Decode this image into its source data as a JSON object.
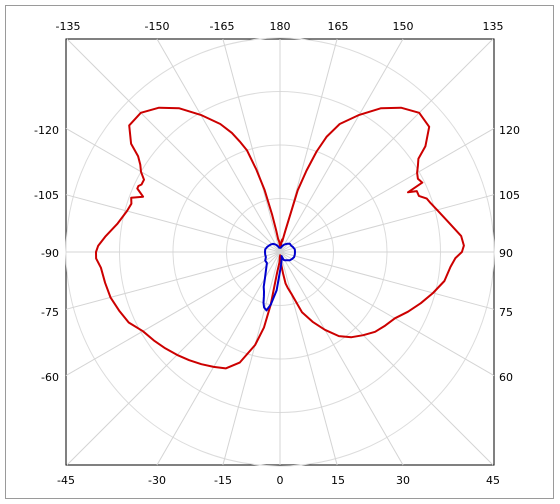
{
  "chart_data": {
    "type": "polar",
    "title": "",
    "angle_axis": {
      "top_ticks": [
        "-135",
        "-150",
        "-165",
        "180",
        "165",
        "150",
        "135"
      ],
      "left_ticks": [
        "-120",
        "-105",
        "-90",
        "-75",
        "-60"
      ],
      "right_ticks": [
        "120",
        "105",
        "90",
        "75",
        "60"
      ],
      "bottom_ticks": [
        "-45",
        "-30",
        "-15",
        "0",
        "15",
        "30",
        "45"
      ],
      "step_deg": 15
    },
    "radial_axis": {
      "rings": 4,
      "range": [
        0,
        1
      ]
    },
    "grid": true,
    "series": [
      {
        "color": "#cc0000",
        "angles": [
          180,
          175,
          172,
          170,
          168,
          166,
          164,
          162,
          160,
          158,
          155,
          150,
          145,
          140,
          135,
          130,
          126,
          124,
          122,
          120,
          118,
          116,
          115,
          114,
          112,
          110,
          108,
          105,
          100,
          95,
          92,
          90,
          88,
          85,
          80,
          75,
          70,
          65,
          60,
          55,
          50,
          45,
          40,
          35,
          30,
          25,
          20,
          15,
          12,
          10,
          8,
          6,
          5,
          4,
          3,
          2,
          1,
          0,
          -1,
          -2,
          -3,
          -5,
          -8,
          -10,
          -12,
          -15,
          -20,
          -25,
          -30,
          -35,
          -40,
          -45,
          -50,
          -55,
          -60,
          -65,
          -70,
          -75,
          -80,
          -85,
          -88,
          -90,
          -92,
          -95,
          -100,
          -105,
          -108,
          -110,
          -112,
          -114,
          -115,
          -116,
          -118,
          -120,
          -122,
          -124,
          -126,
          -130,
          -135,
          -140,
          -145,
          -150,
          -155,
          -158,
          -160,
          -162,
          -164,
          -166,
          -168,
          -170,
          -172,
          -175,
          -180
        ],
        "r": [
          0.03,
          0.02,
          0.05,
          0.06,
          0.05,
          0.1,
          0.3,
          0.4,
          0.5,
          0.58,
          0.66,
          0.74,
          0.82,
          0.88,
          0.92,
          0.91,
          0.84,
          0.78,
          0.76,
          0.74,
          0.73,
          0.74,
          0.66,
          0.7,
          0.7,
          0.73,
          0.74,
          0.76,
          0.8,
          0.85,
          0.86,
          0.85,
          0.82,
          0.8,
          0.78,
          0.74,
          0.7,
          0.66,
          0.62,
          0.6,
          0.58,
          0.55,
          0.52,
          0.48,
          0.42,
          0.36,
          0.3,
          0.2,
          0.17,
          0.15,
          0.1,
          0.06,
          0.03,
          0.04,
          0.02,
          0.015,
          0.03,
          0.02,
          0.02,
          0.03,
          0.05,
          0.06,
          0.1,
          0.25,
          0.36,
          0.45,
          0.55,
          0.6,
          0.62,
          0.64,
          0.66,
          0.68,
          0.7,
          0.72,
          0.74,
          0.78,
          0.8,
          0.82,
          0.83,
          0.84,
          0.86,
          0.86,
          0.85,
          0.82,
          0.77,
          0.74,
          0.73,
          0.74,
          0.69,
          0.73,
          0.73,
          0.72,
          0.72,
          0.75,
          0.77,
          0.8,
          0.86,
          0.92,
          0.92,
          0.88,
          0.82,
          0.74,
          0.66,
          0.6,
          0.55,
          0.5,
          0.4,
          0.3,
          0.18,
          0.1,
          0.06,
          0.05,
          0.03
        ]
      },
      {
        "color": "#0000cc",
        "angles": [
          180,
          170,
          160,
          150,
          140,
          130,
          120,
          110,
          100,
          90,
          80,
          70,
          60,
          50,
          40,
          30,
          25,
          20,
          15,
          10,
          5,
          0,
          -5,
          -10,
          -13,
          -16,
          -18,
          -20,
          -22,
          -25,
          -30,
          -40,
          -50,
          -60,
          -70,
          -80,
          -90,
          -100,
          -110,
          -120,
          -130,
          -140,
          -150,
          -160,
          -170,
          -180
        ],
        "r": [
          0.02,
          0.02,
          0.03,
          0.04,
          0.05,
          0.06,
          0.06,
          0.065,
          0.07,
          0.07,
          0.07,
          0.07,
          0.065,
          0.06,
          0.05,
          0.045,
          0.04,
          0.02,
          0.03,
          0.04,
          0.06,
          0.09,
          0.18,
          0.25,
          0.28,
          0.27,
          0.25,
          0.22,
          0.2,
          0.18,
          0.14,
          0.1,
          0.08,
          0.08,
          0.07,
          0.07,
          0.07,
          0.07,
          0.065,
          0.06,
          0.055,
          0.05,
          0.04,
          0.03,
          0.02,
          0.02
        ]
      }
    ]
  }
}
